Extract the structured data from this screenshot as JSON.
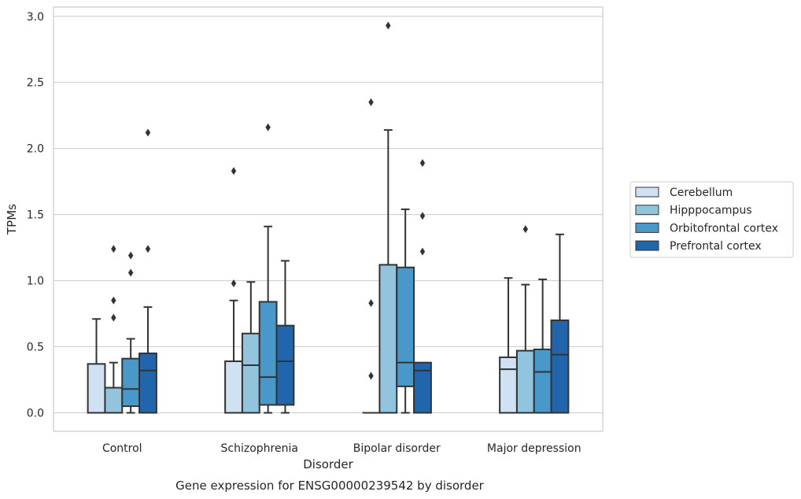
{
  "chart_data": {
    "type": "box",
    "caption": "Gene expression for ENSG00000239542 by disorder",
    "xlabel": "Disorder",
    "ylabel": "TPMs",
    "ylim": [
      -0.14,
      3.07
    ],
    "yticks": [
      "0.0",
      "0.5",
      "1.0",
      "1.5",
      "2.0",
      "2.5",
      "3.0"
    ],
    "grid": "horizontal",
    "legend_position": "right",
    "categories": [
      "Control",
      "Schizophrenia",
      "Bipolar disorder",
      "Major depression"
    ],
    "series": [
      {
        "name": "Cerebellum",
        "color": "#cfe1f2",
        "boxes": [
          {
            "whislo": 0.0,
            "q1": 0.0,
            "med": 0.0,
            "q3": 0.37,
            "whishi": 0.71,
            "fliers": []
          },
          {
            "whislo": 0.0,
            "q1": 0.0,
            "med": 0.0,
            "q3": 0.39,
            "whishi": 0.85,
            "fliers": [
              0.98,
              1.83
            ]
          },
          {
            "whislo": 0.0,
            "q1": 0.0,
            "med": 0.0,
            "q3": 0.0,
            "whishi": 0.0,
            "fliers": [
              0.28,
              0.83,
              2.35
            ]
          },
          {
            "whislo": 0.0,
            "q1": 0.0,
            "med": 0.33,
            "q3": 0.42,
            "whishi": 1.02,
            "fliers": []
          }
        ]
      },
      {
        "name": "Hipppocampus",
        "color": "#93c4de",
        "boxes": [
          {
            "whislo": 0.0,
            "q1": 0.0,
            "med": 0.0,
            "q3": 0.19,
            "whishi": 0.38,
            "fliers": [
              0.72,
              0.85,
              1.24
            ]
          },
          {
            "whislo": 0.0,
            "q1": 0.0,
            "med": 0.36,
            "q3": 0.6,
            "whishi": 0.99,
            "fliers": []
          },
          {
            "whislo": 0.0,
            "q1": 0.0,
            "med": 0.0,
            "q3": 1.12,
            "whishi": 2.14,
            "fliers": [
              2.93
            ]
          },
          {
            "whislo": 0.0,
            "q1": 0.0,
            "med": 0.0,
            "q3": 0.47,
            "whishi": 0.97,
            "fliers": [
              1.39
            ]
          }
        ]
      },
      {
        "name": "Orbitofrontal cortex",
        "color": "#4a98c9",
        "boxes": [
          {
            "whislo": 0.0,
            "q1": 0.05,
            "med": 0.18,
            "q3": 0.41,
            "whishi": 0.56,
            "fliers": [
              1.06,
              1.19
            ]
          },
          {
            "whislo": 0.0,
            "q1": 0.06,
            "med": 0.27,
            "q3": 0.84,
            "whishi": 1.41,
            "fliers": [
              2.16
            ]
          },
          {
            "whislo": 0.0,
            "q1": 0.2,
            "med": 0.38,
            "q3": 1.1,
            "whishi": 1.54,
            "fliers": []
          },
          {
            "whislo": 0.0,
            "q1": 0.0,
            "med": 0.31,
            "q3": 0.48,
            "whishi": 1.01,
            "fliers": []
          }
        ]
      },
      {
        "name": "Prefrontal cortex",
        "color": "#2166ac",
        "boxes": [
          {
            "whislo": 0.0,
            "q1": 0.0,
            "med": 0.32,
            "q3": 0.45,
            "whishi": 0.8,
            "fliers": [
              1.24,
              2.12
            ]
          },
          {
            "whislo": 0.0,
            "q1": 0.06,
            "med": 0.39,
            "q3": 0.66,
            "whishi": 1.15,
            "fliers": []
          },
          {
            "whislo": 0.0,
            "q1": 0.0,
            "med": 0.32,
            "q3": 0.38,
            "whishi": 0.38,
            "fliers": [
              1.22,
              1.49,
              1.89
            ]
          },
          {
            "whislo": 0.0,
            "q1": 0.0,
            "med": 0.44,
            "q3": 0.7,
            "whishi": 1.35,
            "fliers": []
          }
        ]
      }
    ]
  }
}
